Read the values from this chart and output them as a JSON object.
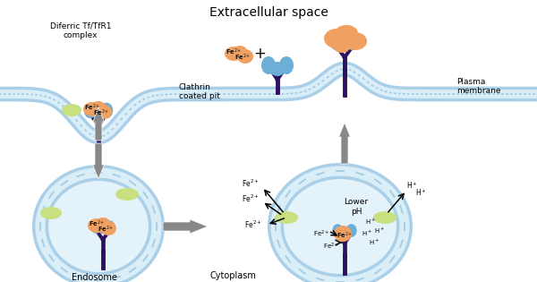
{
  "title": "Extracellular space",
  "labels": {
    "diferric_complex": "Diferric Tf/TfR1\ncomplex",
    "clathrin": "Clathrin\ncoated pit",
    "plasma_membrane": "Plasma\nmembrane",
    "endosome": "Endosome",
    "cytoplasm": "Cytoplasm",
    "lower_ph": "Lower\npH"
  },
  "colors": {
    "mem_blue": "#aacfe8",
    "mem_light": "#daeef8",
    "mem_stripe": "#88bbd8",
    "receptor_blue": "#6baed6",
    "tf_orange": "#f0a060",
    "clathrin_green": "#c8e080",
    "stem_dark": "#2d1060",
    "arrow_gray": "#888888",
    "bg": "#ffffff",
    "text": "#000000",
    "endo_fill": "#e4f2fa"
  },
  "figsize": [
    6.0,
    3.15
  ],
  "dpi": 100
}
